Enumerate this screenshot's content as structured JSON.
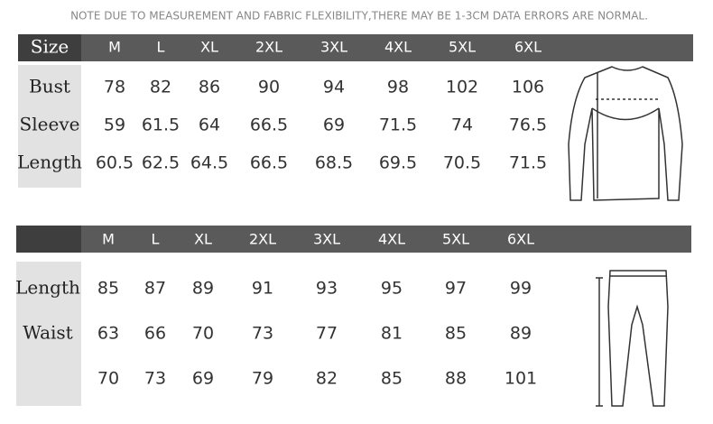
{
  "note": "NOTE DUE TO MEASUREMENT AND FABRIC FLEXIBILITY,THERE MAY BE 1-3CM DATA ERRORS ARE NORMAL.",
  "tables": [
    {
      "header_label": "Size",
      "sizes": [
        "M",
        "L",
        "XL",
        "2XL",
        "3XL",
        "4XL",
        "5XL",
        "6XL"
      ],
      "rows": [
        {
          "label": "Bust",
          "values": [
            78,
            82,
            86,
            90,
            94,
            98,
            102,
            106
          ]
        },
        {
          "label": "Sleeve",
          "values": [
            59,
            61.5,
            64,
            66.5,
            69,
            71.5,
            74,
            76.5
          ]
        },
        {
          "label": "Length",
          "values": [
            60.5,
            62.5,
            64.5,
            66.5,
            68.5,
            69.5,
            70.5,
            71.5
          ]
        }
      ]
    },
    {
      "sizes": [
        "M",
        "L",
        "XL",
        "2XL",
        "3XL",
        "4XL",
        "5XL",
        "6XL"
      ],
      "rows": [
        {
          "label": "Length",
          "values": [
            85,
            87,
            89,
            91,
            93,
            95,
            97,
            99
          ]
        },
        {
          "label": "Waist",
          "values": [
            63,
            66,
            70,
            73,
            77,
            81,
            85,
            89
          ]
        },
        {
          "values": [
            70,
            73,
            69,
            79,
            82,
            85,
            88,
            101
          ]
        }
      ]
    }
  ]
}
